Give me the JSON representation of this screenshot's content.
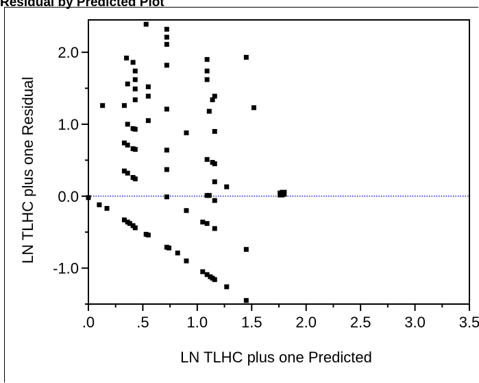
{
  "chart_data": {
    "type": "scatter",
    "title": "Residual by Predicted Plot",
    "xlabel": "LN TLHC plus one Predicted",
    "ylabel": "LN TLHC plus one Residual",
    "xlim": [
      0,
      3.5
    ],
    "ylim": [
      -1.5,
      2.45
    ],
    "x_ticks": [
      {
        "value": 0,
        "label": ".0"
      },
      {
        "value": 0.5,
        "label": ".5"
      },
      {
        "value": 1.0,
        "label": "1.0"
      },
      {
        "value": 1.5,
        "label": "1.5"
      },
      {
        "value": 2.0,
        "label": "2.0"
      },
      {
        "value": 2.5,
        "label": "2.5"
      },
      {
        "value": 3.0,
        "label": "3.0"
      },
      {
        "value": 3.5,
        "label": "3.5"
      }
    ],
    "y_ticks": [
      {
        "value": -1.0,
        "label": "-1.0"
      },
      {
        "value": 0.0,
        "label": "0.0"
      },
      {
        "value": 1.0,
        "label": "1.0"
      },
      {
        "value": 2.0,
        "label": "2.0"
      }
    ],
    "reference_line": {
      "y": 0,
      "style": "dotted",
      "color": "#1a1acd"
    },
    "marker_color": "#000000",
    "points": [
      [
        0.0,
        -0.02
      ],
      [
        0.1,
        -0.12
      ],
      [
        0.13,
        1.26
      ],
      [
        0.17,
        -0.17
      ],
      [
        0.33,
        1.26
      ],
      [
        0.33,
        0.74
      ],
      [
        0.33,
        0.35
      ],
      [
        0.33,
        -0.33
      ],
      [
        0.35,
        1.92
      ],
      [
        0.36,
        1.56
      ],
      [
        0.36,
        1.0
      ],
      [
        0.36,
        0.71
      ],
      [
        0.36,
        0.32
      ],
      [
        0.36,
        -0.36
      ],
      [
        0.38,
        -0.38
      ],
      [
        0.41,
        1.86
      ],
      [
        0.41,
        0.94
      ],
      [
        0.41,
        0.66
      ],
      [
        0.41,
        0.26
      ],
      [
        0.41,
        -0.41
      ],
      [
        0.43,
        1.74
      ],
      [
        0.43,
        1.62
      ],
      [
        0.43,
        1.49
      ],
      [
        0.43,
        1.34
      ],
      [
        0.43,
        0.93
      ],
      [
        0.43,
        0.65
      ],
      [
        0.43,
        0.24
      ],
      [
        0.43,
        -0.44
      ],
      [
        0.53,
        2.39
      ],
      [
        0.53,
        -0.53
      ],
      [
        0.55,
        1.52
      ],
      [
        0.55,
        1.39
      ],
      [
        0.55,
        1.05
      ],
      [
        0.55,
        -0.54
      ],
      [
        0.72,
        2.32
      ],
      [
        0.72,
        2.21
      ],
      [
        0.72,
        2.11
      ],
      [
        0.72,
        1.82
      ],
      [
        0.72,
        1.21
      ],
      [
        0.72,
        0.64
      ],
      [
        0.72,
        0.37
      ],
      [
        0.72,
        -0.01
      ],
      [
        0.72,
        -0.71
      ],
      [
        0.74,
        -0.72
      ],
      [
        0.82,
        -0.79
      ],
      [
        0.9,
        0.88
      ],
      [
        0.9,
        -0.2
      ],
      [
        0.9,
        -0.9
      ],
      [
        1.05,
        -1.05
      ],
      [
        1.05,
        -0.36
      ],
      [
        1.09,
        1.9
      ],
      [
        1.09,
        1.74
      ],
      [
        1.09,
        1.62
      ],
      [
        1.09,
        0.51
      ],
      [
        1.09,
        0.01
      ],
      [
        1.09,
        -0.38
      ],
      [
        1.09,
        -1.09
      ],
      [
        1.11,
        1.18
      ],
      [
        1.11,
        0.01
      ],
      [
        1.12,
        -1.12
      ],
      [
        1.14,
        1.34
      ],
      [
        1.14,
        0.47
      ],
      [
        1.14,
        -1.14
      ],
      [
        1.16,
        1.39
      ],
      [
        1.16,
        0.9
      ],
      [
        1.16,
        0.45
      ],
      [
        1.16,
        0.2
      ],
      [
        1.16,
        -0.06
      ],
      [
        1.16,
        -0.45
      ],
      [
        1.16,
        -1.16
      ],
      [
        1.27,
        0.13
      ],
      [
        1.27,
        -1.26
      ],
      [
        1.45,
        1.93
      ],
      [
        1.45,
        -0.74
      ],
      [
        1.45,
        -1.45
      ],
      [
        1.52,
        1.23
      ],
      [
        1.77,
        0.03
      ],
      [
        1.79,
        0.04
      ]
    ]
  }
}
